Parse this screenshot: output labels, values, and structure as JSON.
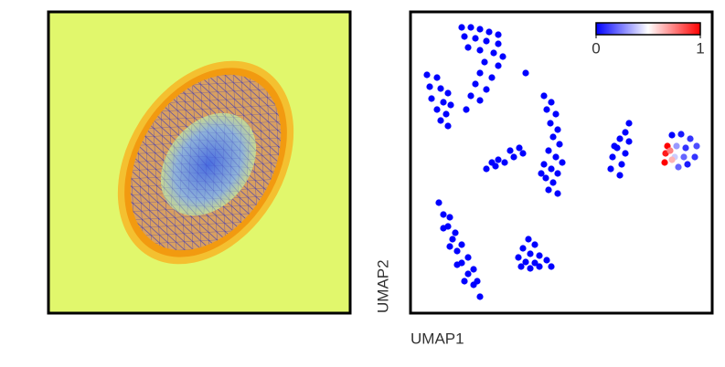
{
  "chart_data": {
    "type": "scatter",
    "xlabel": "UMAP1",
    "ylabel": "UMAP2",
    "xlim": [
      0,
      330
    ],
    "ylim": [
      0,
      330
    ],
    "clim": [
      0,
      1
    ],
    "cticks": [
      0,
      1
    ],
    "colormap": [
      "#0000ff",
      "#ffffff",
      "#ff0000"
    ],
    "x": [
      56,
      66,
      76,
      86,
      96,
      59,
      71,
      83,
      96,
      63,
      76,
      91,
      101,
      81,
      96,
      76,
      89,
      71,
      83,
      66,
      76,
      61,
      18,
      29,
      21,
      33,
      41,
      23,
      36,
      44,
      29,
      39,
      33,
      41,
      126,
      146,
      154,
      149,
      159,
      153,
      161,
      156,
      163,
      151,
      159,
      146,
      154,
      161,
      148,
      156,
      151,
      161,
      143,
      166,
      83,
      93,
      103,
      113,
      123,
      96,
      109,
      119,
      89,
      239,
      235,
      229,
      239,
      226,
      235,
      221,
      231,
      219,
      229,
      223,
      286,
      296,
      306,
      313,
      311,
      303,
      293,
      291,
      301,
      299,
      289,
      281,
      279,
      278,
      284,
      286,
      31,
      36,
      41,
      46,
      51,
      56,
      63,
      69,
      76,
      43,
      49,
      56,
      63,
      69,
      73,
      36,
      43,
      51,
      59,
      129,
      136,
      123,
      131,
      141,
      118,
      126,
      136,
      149,
      121,
      141,
      154,
      131
    ],
    "y": [
      313,
      313,
      311,
      308,
      305,
      303,
      301,
      298,
      295,
      291,
      288,
      285,
      281,
      275,
      271,
      263,
      258,
      251,
      245,
      238,
      233,
      223,
      261,
      258,
      248,
      246,
      241,
      235,
      231,
      228,
      223,
      218,
      211,
      205,
      263,
      238,
      231,
      223,
      218,
      208,
      201,
      193,
      185,
      178,
      171,
      163,
      158,
      153,
      148,
      143,
      135,
      131,
      153,
      165,
      158,
      161,
      165,
      171,
      175,
      168,
      178,
      181,
      165,
      208,
      198,
      191,
      188,
      181,
      175,
      171,
      163,
      158,
      151,
      183,
      195,
      196,
      191,
      183,
      171,
      163,
      160,
      183,
      181,
      171,
      171,
      183,
      175,
      165,
      178,
      168,
      121,
      108,
      95,
      81,
      68,
      55,
      43,
      31,
      18,
      105,
      88,
      75,
      61,
      48,
      35,
      93,
      73,
      53,
      35,
      81,
      75,
      71,
      65,
      63,
      61,
      56,
      55,
      58,
      51,
      51,
      51,
      49
    ],
    "values": [
      0,
      0,
      0,
      0,
      0,
      0,
      0,
      0,
      0,
      0,
      0,
      0,
      0,
      0,
      0,
      0,
      0,
      0,
      0,
      0,
      0,
      0,
      0,
      0,
      0,
      0,
      0,
      0,
      0,
      0,
      0,
      0,
      0,
      0,
      0,
      0,
      0,
      0,
      0,
      0,
      0,
      0,
      0,
      0,
      0,
      0,
      0,
      0,
      0,
      0,
      0,
      0,
      0,
      0,
      0,
      0,
      0,
      0,
      0,
      0,
      0,
      0,
      0,
      0,
      0,
      0,
      0,
      0,
      0,
      0,
      0,
      0,
      0,
      0,
      0,
      0.05,
      0.1,
      0.15,
      0.1,
      0.05,
      0.2,
      0.3,
      0.1,
      0.2,
      0.4,
      1,
      0.95,
      1,
      0.75,
      0.65,
      0,
      0,
      0,
      0,
      0,
      0,
      0,
      0,
      0,
      0,
      0,
      0,
      0,
      0,
      0,
      0,
      0,
      0,
      0,
      0,
      0,
      0,
      0,
      0,
      0,
      0,
      0,
      0,
      0,
      0,
      0,
      0
    ]
  }
}
